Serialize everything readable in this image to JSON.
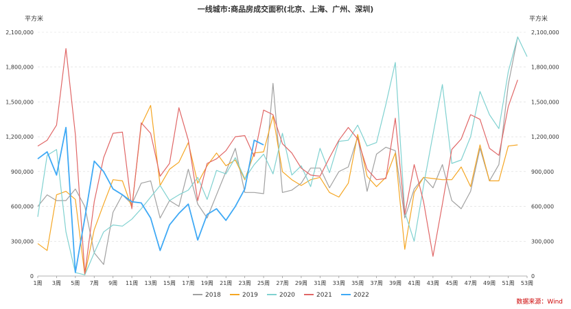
{
  "chart_data": {
    "type": "line",
    "title": "一线城市:商品房成交面积(北京、上海、广州、深圳)",
    "ylabel_left": "平方米",
    "ylabel_right": "平方米",
    "ylim": [
      0,
      2100000
    ],
    "yticks": [
      "0",
      "300,000",
      "600,000",
      "900,000",
      "1,200,000",
      "1,500,000",
      "1,800,000",
      "2,100,000"
    ],
    "yticks_right": [
      "0",
      "300,000",
      "600,000",
      "900,000",
      "1,200,000",
      "1,500,000",
      "1,800,000",
      "2,100,000"
    ],
    "x_ticks": [
      "1周",
      "3周",
      "5周",
      "7周",
      "9周",
      "11周",
      "13周",
      "15周",
      "17周",
      "19周",
      "21周",
      "23周",
      "25周",
      "27周",
      "29周",
      "31周",
      "33周",
      "35周",
      "37周",
      "39周",
      "41周",
      "43周",
      "45周",
      "47周",
      "49周",
      "51周",
      "53周"
    ],
    "x_count": 53,
    "grid": "horizontal-dashed",
    "legend_position": "bottom",
    "series": [
      {
        "name": "2018",
        "color": "#a0a0a0",
        "width": 1.2,
        "values": [
          600000,
          700000,
          650000,
          650000,
          750000,
          600000,
          200000,
          100000,
          550000,
          700000,
          620000,
          800000,
          820000,
          500000,
          650000,
          600000,
          920000,
          620000,
          500000,
          700000,
          900000,
          1100000,
          720000,
          720000,
          710000,
          1660000,
          720000,
          740000,
          800000,
          930000,
          930000,
          760000,
          900000,
          940000,
          1200000,
          730000,
          1050000,
          1110000,
          1080000,
          500000,
          750000,
          850000,
          760000,
          960000,
          650000,
          580000,
          730000,
          1100000,
          820000,
          960000,
          1650000,
          2060000,
          null
        ]
      },
      {
        "name": "2019",
        "color": "#f5a623",
        "width": 1.2,
        "values": [
          280000,
          220000,
          700000,
          730000,
          660000,
          10000,
          400000,
          620000,
          830000,
          820000,
          590000,
          1300000,
          1470000,
          780000,
          920000,
          980000,
          1150000,
          800000,
          950000,
          1060000,
          950000,
          1000000,
          830000,
          1060000,
          1070000,
          1380000,
          900000,
          830000,
          780000,
          830000,
          850000,
          720000,
          680000,
          800000,
          1220000,
          860000,
          770000,
          850000,
          1060000,
          230000,
          720000,
          850000,
          840000,
          830000,
          830000,
          940000,
          770000,
          1130000,
          820000,
          820000,
          1120000,
          1130000,
          null
        ]
      },
      {
        "name": "2020",
        "color": "#7fd1d0",
        "width": 1.2,
        "values": [
          510000,
          1040000,
          1090000,
          380000,
          30000,
          10000,
          200000,
          380000,
          440000,
          430000,
          490000,
          580000,
          680000,
          780000,
          650000,
          700000,
          740000,
          850000,
          660000,
          910000,
          880000,
          1020000,
          840000,
          960000,
          1050000,
          880000,
          1230000,
          870000,
          950000,
          770000,
          1100000,
          890000,
          1160000,
          1170000,
          1300000,
          1120000,
          1150000,
          1480000,
          1840000,
          550000,
          300000,
          780000,
          1220000,
          1650000,
          970000,
          1000000,
          1200000,
          1590000,
          1390000,
          1270000,
          1760000,
          2060000,
          1890000
        ]
      },
      {
        "name": "2021",
        "color": "#e06666",
        "width": 1.2,
        "values": [
          1120000,
          1170000,
          1300000,
          1960000,
          1220000,
          20000,
          640000,
          1020000,
          1230000,
          1240000,
          580000,
          1320000,
          1230000,
          860000,
          970000,
          1450000,
          1170000,
          650000,
          970000,
          1010000,
          1080000,
          1200000,
          1210000,
          1030000,
          1430000,
          1390000,
          1140000,
          1060000,
          930000,
          870000,
          860000,
          1020000,
          1170000,
          1280000,
          1180000,
          920000,
          830000,
          840000,
          1360000,
          530000,
          960000,
          640000,
          170000,
          620000,
          1090000,
          1180000,
          1390000,
          1350000,
          1100000,
          1040000,
          1460000,
          1690000,
          null
        ]
      },
      {
        "name": "2022",
        "color": "#3fa9f5",
        "width": 1.8,
        "values": [
          1010000,
          1070000,
          870000,
          1280000,
          30000,
          500000,
          990000,
          900000,
          750000,
          700000,
          640000,
          630000,
          500000,
          220000,
          440000,
          540000,
          620000,
          310000,
          530000,
          580000,
          480000,
          600000,
          750000,
          1170000,
          1130000,
          null,
          null,
          null,
          null,
          null,
          null,
          null,
          null,
          null,
          null,
          null,
          null,
          null,
          null,
          null,
          null,
          null,
          null,
          null,
          null,
          null,
          null,
          null,
          null,
          null,
          null,
          null,
          null
        ]
      }
    ]
  },
  "source": "数据来源：Wind"
}
